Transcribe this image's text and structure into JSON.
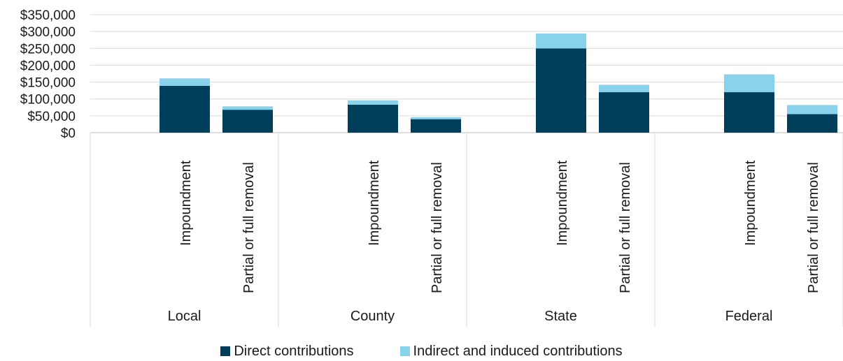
{
  "chart_data": {
    "type": "bar",
    "stacked": true,
    "groups": [
      "Local",
      "County",
      "State",
      "Federal"
    ],
    "subcategories": [
      "Impoundment",
      "Partial or full removal"
    ],
    "categories": [
      "Local / Impoundment",
      "Local / Partial or full removal",
      "County / Impoundment",
      "County / Partial or full removal",
      "State / Impoundment",
      "State / Partial or full removal",
      "Federal / Impoundment",
      "Federal / Partial or full removal"
    ],
    "series": [
      {
        "name": "Direct contributions",
        "color": "#003f5c",
        "values": [
          139000,
          68000,
          83000,
          40000,
          250000,
          120000,
          120000,
          55000
        ]
      },
      {
        "name": "Indirect and induced contributions",
        "color": "#89d2ec",
        "values": [
          22000,
          10000,
          13000,
          6000,
          44000,
          22000,
          53000,
          27000
        ]
      }
    ],
    "y_ticks": [
      "$0",
      "$50,000",
      "$100,000",
      "$150,000",
      "$200,000",
      "$250,000",
      "$300,000",
      "$350,000"
    ],
    "ylim": [
      0,
      350000
    ],
    "grid": true,
    "legend_position": "bottom"
  }
}
